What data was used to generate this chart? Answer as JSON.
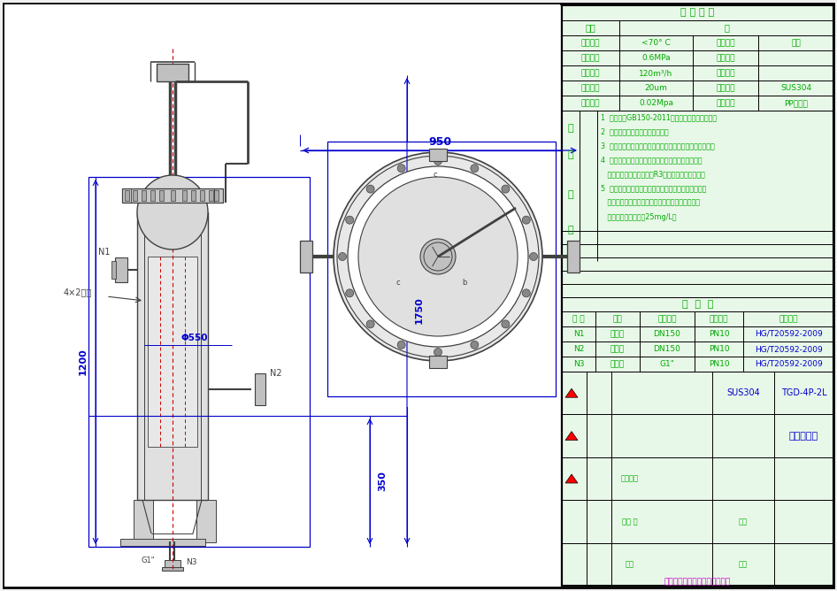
{
  "bg_color": "#ffffff",
  "line_color": "#0000cd",
  "draw_color": "#404040",
  "red_dash": "#cc0000",
  "green_text": "#00aa00",
  "magenta_text": "#cc00cc",
  "blue_text": "#0000cc",
  "process_rows": [
    [
      "物料",
      "水"
    ],
    [
      "设计温度",
      "<70° C",
      "工作温度",
      "常温"
    ],
    [
      "设计压力",
      "0.6MPa",
      "工作压力",
      ""
    ],
    [
      "设计流量",
      "120m³/h",
      "工作流量",
      ""
    ],
    [
      "过滤精度",
      "20um",
      "壳体材质",
      "SUS304"
    ],
    [
      "压力损失",
      "0.02Mpa",
      "滤芜材质",
      "PP聚丙烯"
    ]
  ],
  "tech_lines": [
    "1  设备参照GB150-2011《压力容器》进行制作。",
    "2  设备表面整体噴沙或抛光处理。",
    "3  焊缝及热影响区不得有裂纹、气孔、弧坑和岖山等缺陷。",
    "4  装配时不得用锤击来强制校形和对缝，各接管部位",
    "   和角焊缝应打层成不小于R3的圆角，并图滑过渡。",
    "5  试验液体采用水，试验合格后应立即将水排净吹干；",
    "   无法完全吹干时，对奥氏体不锈钙容器，应控制水",
    "   的氯离子含量不超过25mg/L。"
  ],
  "tech_labels": [
    "技",
    "术",
    "要",
    "求"
  ],
  "nozzle_headers": [
    "符 号",
    "名称",
    "公称尺寸",
    "公称压力",
    "连接标准"
  ],
  "nozzle_rows": [
    [
      "N1",
      "进水口",
      "DN150",
      "PN10",
      "HG/T20592-2009"
    ],
    [
      "N2",
      "出水口",
      "DN150",
      "PN10",
      "HG/T20592-2009"
    ],
    [
      "N3",
      "排液口",
      "G1\"",
      "PN10",
      "HG/T20592-2009"
    ]
  ],
  "tb_material": "SUS304",
  "tb_drawing_no": "TGD-4P-2L",
  "tb_title": "袋式过滤器",
  "tb_company": "青岛宇学流体过滤技术有限公司"
}
